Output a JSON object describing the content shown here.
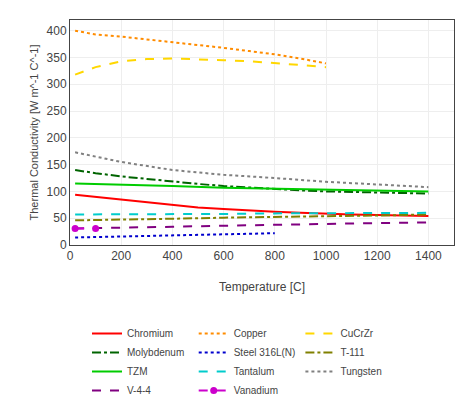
{
  "chart_data": {
    "type": "line",
    "xlabel": "Temperature [C]",
    "ylabel": "Thermal Conductivity [W m^-1 C^-1]",
    "xlim": [
      0,
      1500
    ],
    "ylim": [
      0,
      420
    ],
    "xticks": [
      0,
      200,
      400,
      600,
      800,
      1000,
      1200,
      1400
    ],
    "yticks": [
      0,
      50,
      100,
      150,
      200,
      250,
      300,
      350,
      400
    ],
    "grid": true,
    "legend": "bottom",
    "series": [
      {
        "name": "Chromium",
        "color": "#ff0000",
        "line_style": "solid",
        "x": [
          20,
          100,
          200,
          300,
          400,
          500,
          600,
          700,
          800,
          900,
          1000,
          1100,
          1200,
          1300,
          1400
        ],
        "values": [
          94,
          90,
          85,
          80,
          74,
          70,
          67,
          64,
          62,
          60,
          58,
          57,
          56,
          55,
          54
        ]
      },
      {
        "name": "Copper",
        "color": "#ff8c00",
        "line_style": "dotted",
        "x": [
          20,
          100,
          200,
          300,
          400,
          500,
          600,
          700,
          800,
          900,
          1000
        ],
        "values": [
          400,
          393,
          389,
          384,
          379,
          374,
          368,
          362,
          356,
          348,
          339
        ]
      },
      {
        "name": "CuCrZr",
        "color": "#ffd700",
        "line_style": "dashed",
        "x": [
          20,
          100,
          200,
          300,
          400,
          500,
          600,
          700,
          800,
          900,
          1000
        ],
        "values": [
          318,
          332,
          343,
          347,
          348,
          347,
          345,
          343,
          340,
          336,
          332
        ]
      },
      {
        "name": "Molybdenum",
        "color": "#006400",
        "line_style": "dashdot",
        "x": [
          20,
          100,
          200,
          300,
          400,
          500,
          600,
          700,
          800,
          900,
          1000,
          1100,
          1200,
          1300,
          1400
        ],
        "values": [
          140,
          134,
          128,
          123,
          118,
          114,
          110,
          107,
          104,
          102,
          100,
          99,
          98,
          97,
          96
        ]
      },
      {
        "name": "Steel 316L(N)",
        "color": "#0000cd",
        "line_style": "dotted",
        "x": [
          20,
          100,
          200,
          300,
          400,
          500,
          600,
          700,
          800
        ],
        "values": [
          14,
          15,
          16,
          17,
          18,
          19,
          20,
          21,
          22
        ]
      },
      {
        "name": "T-111",
        "color": "#808000",
        "line_style": "dashdot",
        "x": [
          20,
          200,
          400,
          600,
          800,
          1000,
          1200,
          1400
        ],
        "values": [
          46,
          48,
          49,
          51,
          52,
          53,
          55,
          57
        ]
      },
      {
        "name": "TZM",
        "color": "#00cc00",
        "line_style": "solid",
        "x": [
          20,
          200,
          400,
          600,
          800,
          1000,
          1200,
          1400
        ],
        "values": [
          115,
          113,
          110,
          107,
          105,
          103,
          101,
          100
        ]
      },
      {
        "name": "Tantalum",
        "color": "#00cccc",
        "line_style": "dashed",
        "x": [
          20,
          200,
          400,
          600,
          800,
          1000,
          1200,
          1400
        ],
        "values": [
          57,
          57,
          58,
          58,
          59,
          59,
          60,
          60
        ]
      },
      {
        "name": "Tungsten",
        "color": "#808080",
        "line_style": "dotted",
        "x": [
          20,
          200,
          400,
          600,
          800,
          1000,
          1200,
          1400
        ],
        "values": [
          173,
          155,
          140,
          131,
          125,
          118,
          113,
          108
        ]
      },
      {
        "name": "V-4-4",
        "color": "#800080",
        "line_style": "dashed",
        "x": [
          20,
          200,
          400,
          600,
          800,
          1000,
          1200,
          1400
        ],
        "values": [
          31,
          32,
          34,
          36,
          38,
          39,
          41,
          42
        ]
      },
      {
        "name": "Vanadium",
        "color": "#cc00cc",
        "line_style": "dashed",
        "marker": "circle",
        "x": [
          20,
          100
        ],
        "values": [
          31,
          31
        ]
      }
    ]
  }
}
